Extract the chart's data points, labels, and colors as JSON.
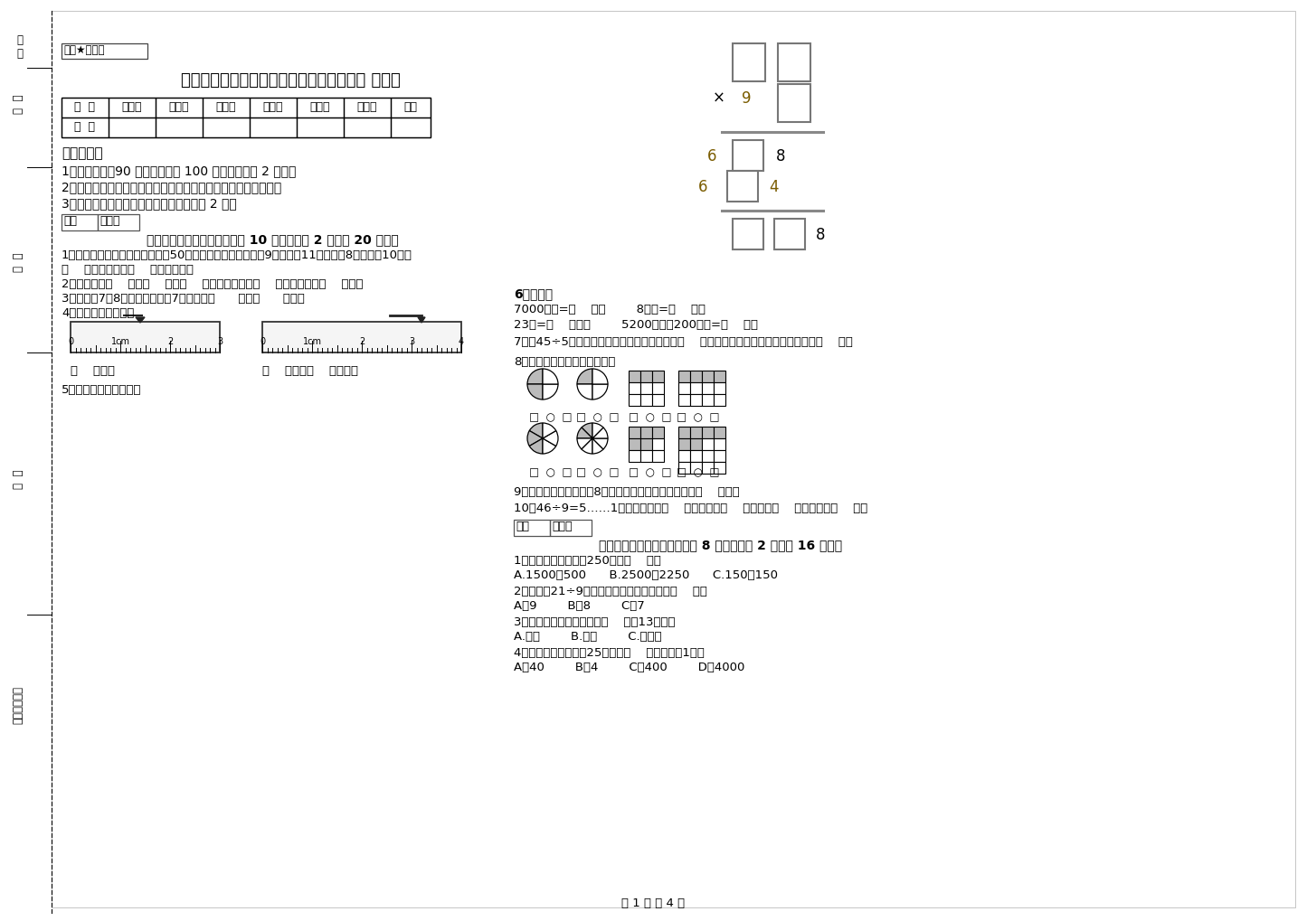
{
  "title": "内蒙古重点小学三年级数学下学期月考试卷 附解析",
  "secret_label": "绝密★启用前",
  "bg_color": "#ffffff",
  "text_color": "#000000",
  "table_headers": [
    "题  号",
    "填空题",
    "选择题",
    "判断题",
    "计算题",
    "综合题",
    "应用题",
    "总分"
  ],
  "notice_title": "考试须知：",
  "notice_items": [
    "1、考试时间：90 分钟，满分为 100 分（含卷面分 2 分）。",
    "2、请首先按要求在试卷的指定位置填写您的姓名、班级、学号。",
    "3、不要在试卷上乱写乱画，卷面不整洁扣 2 分。"
  ],
  "section1_title": "一、用心思考，正确填空（共 10 小题，每题 2 分，共 20 分）。",
  "section1_q1": "1、体育老师对第一小组同学进行50米跑测试，成绩如下小红9秒，小丽11秒，小明8秒，小华10秒。",
  "section1_q1b": "（    ）跑得最快，（    ）跑得最慢。",
  "section1_q2": "2、你出生于（    ）年（    ）月（    ）日，那一年是（    ）年，全年有（    ）天。",
  "section1_q3": "3、时针在7和8之间，分针指向7，这时是（      ）时（      ）分。",
  "section1_q4": "4、量出钉子的长度。",
  "section1_q4b": "（    ）毫米",
  "section1_q4c": "（    ）厘米（    ）毫米。",
  "section1_q5": "5、在里填上适当的数。",
  "section2_title": "二、反复比较，慎重选择（共 8 小题，每题 2 分，共 16 分）。",
  "section2_q1": "1、下面的结果刚好是250的是（    ）。",
  "section2_q1_opts": "A.1500－500      B.2500－2250      C.150＋150",
  "section2_q2": "2、要使口21÷9的商是三位数，口里只能填（    ）。",
  "section2_q2_opts": "A、9        B、8        C、7",
  "section2_q3": "3、按农历计算，有的年份（    ）有13个月。",
  "section2_q3_opts": "A.一定        B.可能        C.不可能",
  "section2_q4": "4、平均每个同学体重25千克，（    ）名同学重1吨。",
  "section2_q4_opts": "A、40        B、4        C、400        D、4000",
  "right_q6_title": "6、换算。",
  "right_q6a": "7000千克=（    ）吨        8千克=（    ）克",
  "right_q6b": "23吨=（    ）千克        5200千克－200千克=（    ）吨",
  "right_q7": "7、口45÷5，要使商是两位数，口里最大可填（    ）；要使商是三位数，口里最小应填（    ）。",
  "right_q8": "8、看图写分数，并比较大小。",
  "right_q9": "9、小明从一楼到三楼用8秒，照这样他从一楼到五楼用（    ）秒。",
  "right_q10": "10、46÷9=5……1中，被除数是（    ），除数是（    ），商是（    ），余数是（    ）。",
  "page_footer": "第 1 页 共 4 页",
  "defen_label": "得分",
  "pinjuan_label": "评卷人"
}
